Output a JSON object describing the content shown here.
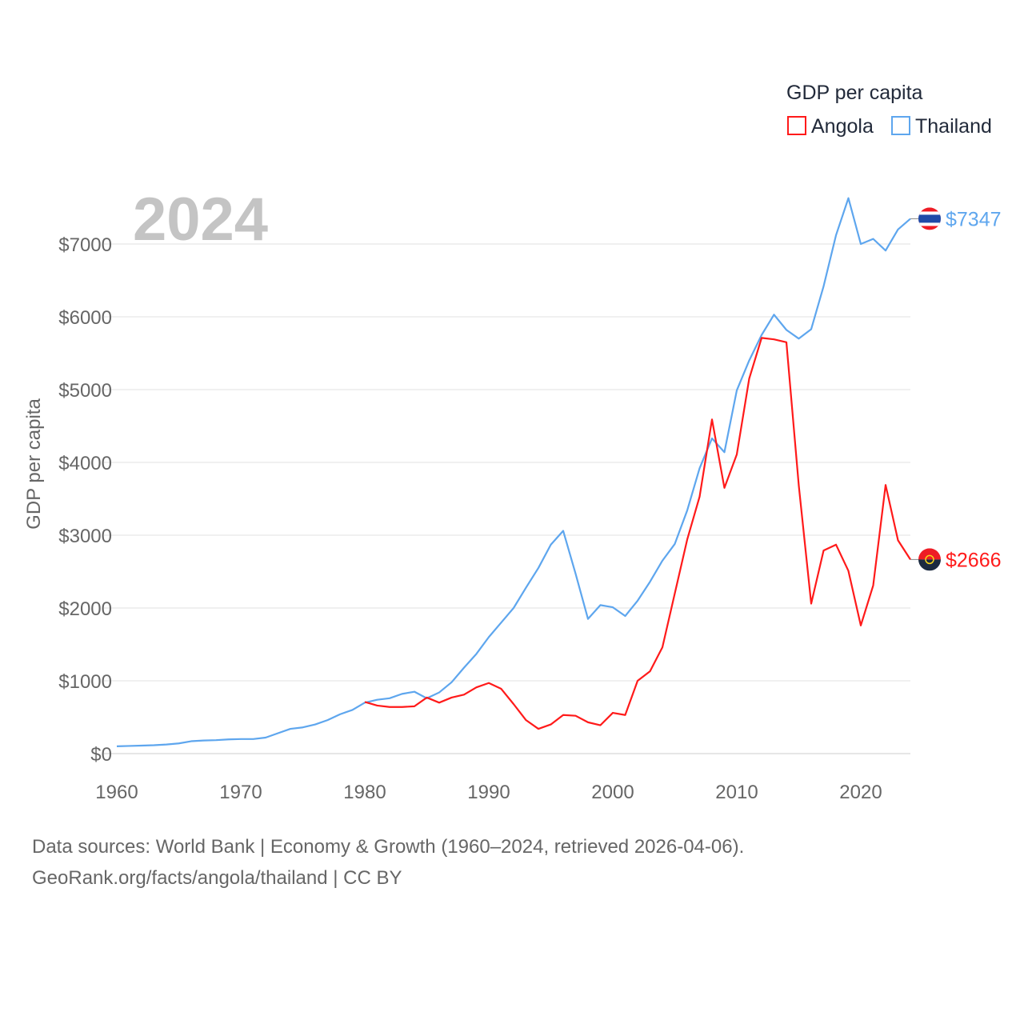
{
  "chart_data": {
    "type": "line",
    "title": "GDP per capita",
    "year_label": "2024",
    "ylabel": "GDP per capita",
    "xlabel": "",
    "xlim": [
      1960,
      2024
    ],
    "ylim": [
      0,
      7000
    ],
    "xticks": [
      1960,
      1970,
      1980,
      1990,
      2000,
      2010,
      2020
    ],
    "xtick_labels": [
      "1960",
      "1970",
      "1980",
      "1990",
      "2000",
      "2010",
      "2020"
    ],
    "yticks": [
      0,
      1000,
      2000,
      3000,
      4000,
      5000,
      6000,
      7000
    ],
    "ytick_labels": [
      "$0",
      "$1000",
      "$2000",
      "$3000",
      "$4000",
      "$5000",
      "$6000",
      "$7000"
    ],
    "grid": true,
    "legend_position": "top-right",
    "series": [
      {
        "name": "Angola",
        "color": "#ff1a1a",
        "end_label": "$2666",
        "start_year": 1980,
        "values": [
          710,
          660,
          640,
          640,
          650,
          770,
          700,
          770,
          810,
          910,
          970,
          890,
          680,
          460,
          340,
          400,
          530,
          520,
          430,
          390,
          560,
          530,
          1000,
          1130,
          1460,
          2200,
          2940,
          3530,
          4590,
          3650,
          4110,
          5150,
          5710,
          5690,
          5650,
          3680,
          2060,
          2790,
          2870,
          2510,
          1760,
          2310,
          3690,
          2930,
          2666
        ]
      },
      {
        "name": "Thailand",
        "color": "#5ea6ee",
        "end_label": "$7347",
        "start_year": 1960,
        "values": [
          100,
          105,
          110,
          115,
          125,
          140,
          170,
          180,
          185,
          195,
          200,
          200,
          220,
          280,
          340,
          360,
          400,
          460,
          540,
          600,
          700,
          740,
          760,
          820,
          850,
          760,
          840,
          980,
          1180,
          1370,
          1600,
          1800,
          2000,
          2280,
          2550,
          2870,
          3060,
          2470,
          1850,
          2040,
          2010,
          1890,
          2100,
          2360,
          2650,
          2880,
          3340,
          3920,
          4330,
          4140,
          4990,
          5400,
          5750,
          6030,
          5820,
          5700,
          5830,
          6420,
          7120,
          7630,
          7000,
          7070,
          6910,
          7200,
          7347
        ]
      }
    ]
  },
  "footer": {
    "line1": "Data sources: World Bank | Economy & Growth (1960–2024, retrieved 2026-04-06).",
    "line2": "GeoRank.org/facts/angola/thailand | CC BY"
  }
}
